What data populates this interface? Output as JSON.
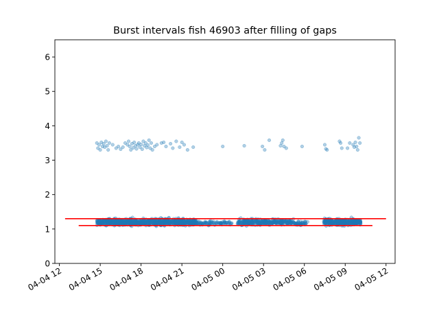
{
  "chart_data": {
    "type": "scatter",
    "title": "Burst intervals fish 46903 after filling of gaps",
    "xlabel": "",
    "ylabel": "",
    "x_range": [
      "2024-04-04T11:40",
      "2024-04-05T12:40"
    ],
    "ylim": [
      0,
      6.5
    ],
    "x_ticks": [
      {
        "at": "2024-04-04T12:00",
        "label": "04-04 12"
      },
      {
        "at": "2024-04-04T15:00",
        "label": "04-04 15"
      },
      {
        "at": "2024-04-04T18:00",
        "label": "04-04 18"
      },
      {
        "at": "2024-04-04T21:00",
        "label": "04-04 21"
      },
      {
        "at": "2024-04-05T00:00",
        "label": "04-05 00"
      },
      {
        "at": "2024-04-05T03:00",
        "label": "04-05 03"
      },
      {
        "at": "2024-04-05T06:00",
        "label": "04-05 06"
      },
      {
        "at": "2024-04-05T09:00",
        "label": "04-05 09"
      },
      {
        "at": "2024-04-05T12:00",
        "label": "04-05 12"
      }
    ],
    "y_ticks": [
      0,
      1,
      2,
      3,
      4,
      5,
      6
    ],
    "grid": false,
    "colors": {
      "points": "#1f77b4",
      "threshold_lines": "#ff0000"
    },
    "point_clusters": [
      {
        "from": "2024-04-04T14:45",
        "to": "2024-04-04T22:05",
        "y_center": 1.2,
        "y_spread": 0.09,
        "count": 1000
      },
      {
        "from": "2024-04-04T22:05",
        "to": "2024-04-05T00:40",
        "y_center": 1.17,
        "y_spread": 0.06,
        "count": 90
      },
      {
        "from": "2024-04-05T01:05",
        "to": "2024-04-05T05:15",
        "y_center": 1.2,
        "y_spread": 0.08,
        "count": 360
      },
      {
        "from": "2024-04-05T05:15",
        "to": "2024-04-05T06:15",
        "y_center": 1.17,
        "y_spread": 0.06,
        "count": 45
      },
      {
        "from": "2024-04-05T07:25",
        "to": "2024-04-05T10:10",
        "y_center": 1.2,
        "y_spread": 0.09,
        "count": 380
      }
    ],
    "upper_points": [
      [
        "2024-04-04T14:45",
        3.5
      ],
      [
        "2024-04-04T14:50",
        3.35
      ],
      [
        "2024-04-04T14:55",
        3.45
      ],
      [
        "2024-04-04T15:00",
        3.3
      ],
      [
        "2024-04-04T15:05",
        3.52
      ],
      [
        "2024-04-04T15:10",
        3.4
      ],
      [
        "2024-04-04T15:15",
        3.48
      ],
      [
        "2024-04-04T15:20",
        3.38
      ],
      [
        "2024-04-04T15:25",
        3.55
      ],
      [
        "2024-04-04T15:30",
        3.42
      ],
      [
        "2024-04-04T15:35",
        3.3
      ],
      [
        "2024-04-04T15:40",
        3.5
      ],
      [
        "2024-04-04T15:55",
        3.45
      ],
      [
        "2024-04-04T16:10",
        3.35
      ],
      [
        "2024-04-04T16:20",
        3.4
      ],
      [
        "2024-04-04T16:30",
        3.32
      ],
      [
        "2024-04-04T16:40",
        3.38
      ],
      [
        "2024-04-04T16:50",
        3.5
      ],
      [
        "2024-04-04T17:00",
        3.45
      ],
      [
        "2024-04-04T17:05",
        3.55
      ],
      [
        "2024-04-04T17:10",
        3.4
      ],
      [
        "2024-04-04T17:15",
        3.3
      ],
      [
        "2024-04-04T17:20",
        3.48
      ],
      [
        "2024-04-04T17:25",
        3.36
      ],
      [
        "2024-04-04T17:30",
        3.52
      ],
      [
        "2024-04-04T17:35",
        3.42
      ],
      [
        "2024-04-04T17:40",
        3.33
      ],
      [
        "2024-04-04T17:45",
        3.45
      ],
      [
        "2024-04-04T17:50",
        3.5
      ],
      [
        "2024-04-04T17:55",
        3.38
      ],
      [
        "2024-04-04T18:00",
        3.46
      ],
      [
        "2024-04-04T18:05",
        3.32
      ],
      [
        "2024-04-04T18:10",
        3.55
      ],
      [
        "2024-04-04T18:15",
        3.42
      ],
      [
        "2024-04-04T18:20",
        3.5
      ],
      [
        "2024-04-04T18:25",
        3.37
      ],
      [
        "2024-04-04T18:30",
        3.44
      ],
      [
        "2024-04-04T18:35",
        3.58
      ],
      [
        "2024-04-04T18:40",
        3.35
      ],
      [
        "2024-04-04T18:45",
        3.5
      ],
      [
        "2024-04-04T18:50",
        3.3
      ],
      [
        "2024-04-04T19:00",
        3.4
      ],
      [
        "2024-04-04T19:10",
        3.45
      ],
      [
        "2024-04-04T19:30",
        3.5
      ],
      [
        "2024-04-04T19:40",
        3.52
      ],
      [
        "2024-04-04T19:50",
        3.4
      ],
      [
        "2024-04-04T20:10",
        3.48
      ],
      [
        "2024-04-04T20:20",
        3.35
      ],
      [
        "2024-04-04T20:35",
        3.55
      ],
      [
        "2024-04-04T20:50",
        3.38
      ],
      [
        "2024-04-04T21:00",
        3.52
      ],
      [
        "2024-04-04T21:10",
        3.45
      ],
      [
        "2024-04-04T21:25",
        3.3
      ],
      [
        "2024-04-04T21:50",
        3.38
      ],
      [
        "2024-04-05T00:00",
        3.4
      ],
      [
        "2024-04-05T01:35",
        3.42
      ],
      [
        "2024-04-05T02:55",
        3.4
      ],
      [
        "2024-04-05T03:05",
        3.3
      ],
      [
        "2024-04-05T03:25",
        3.58
      ],
      [
        "2024-04-05T04:15",
        3.42
      ],
      [
        "2024-04-05T04:20",
        3.5
      ],
      [
        "2024-04-05T04:25",
        3.58
      ],
      [
        "2024-04-05T04:30",
        3.4
      ],
      [
        "2024-04-05T04:40",
        3.35
      ],
      [
        "2024-04-05T05:50",
        3.4
      ],
      [
        "2024-04-05T07:30",
        3.45
      ],
      [
        "2024-04-05T07:35",
        3.33
      ],
      [
        "2024-04-05T07:40",
        3.3
      ],
      [
        "2024-04-05T08:35",
        3.55
      ],
      [
        "2024-04-05T08:40",
        3.5
      ],
      [
        "2024-04-05T08:45",
        3.35
      ],
      [
        "2024-04-05T09:10",
        3.35
      ],
      [
        "2024-04-05T09:20",
        3.5
      ],
      [
        "2024-04-05T09:35",
        3.45
      ],
      [
        "2024-04-05T09:40",
        3.38
      ],
      [
        "2024-04-05T09:45",
        3.52
      ],
      [
        "2024-04-05T09:50",
        3.4
      ],
      [
        "2024-04-05T09:55",
        3.3
      ],
      [
        "2024-04-05T10:00",
        3.65
      ],
      [
        "2024-04-05T10:05",
        3.5
      ]
    ],
    "threshold_lines": [
      {
        "from": "2024-04-04T12:25",
        "to": "2024-04-05T12:00",
        "y": 1.3
      },
      {
        "from": "2024-04-04T13:25",
        "to": "2024-04-05T11:00",
        "y": 1.1
      }
    ]
  }
}
